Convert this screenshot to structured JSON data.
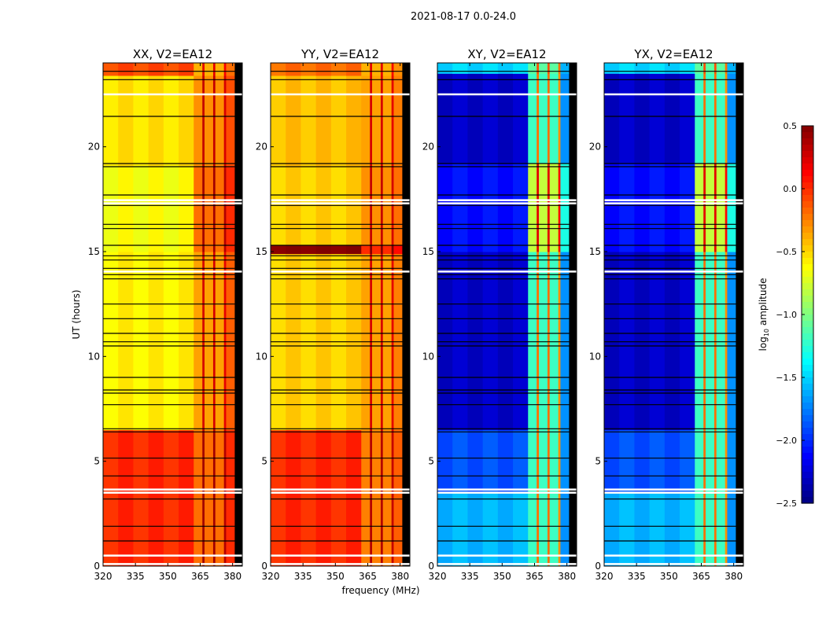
{
  "chart_data": {
    "type": "heatmap",
    "title": "2021-08-17 0.0-24.0",
    "xlabel": "frequency (MHz)",
    "ylabel": "UT (hours)",
    "xlim": [
      320,
      384.5
    ],
    "ylim": [
      0,
      24
    ],
    "xticks": [
      320,
      335,
      350,
      365,
      380
    ],
    "yticks": [
      0,
      5,
      10,
      15,
      20
    ],
    "colormap": "jet",
    "colorbar": {
      "label": "log10 amplitude",
      "label_main": "log",
      "label_sub": "10",
      "label_rest": " amplitude",
      "range": [
        -2.5,
        0.5
      ],
      "ticks": [
        "0.5",
        "0.0",
        "−0.5",
        "−1.0",
        "−1.5",
        "−2.0",
        "−2.5"
      ],
      "tick_values": [
        0.5,
        0.0,
        -0.5,
        -1.0,
        -1.5,
        -2.0,
        -2.5
      ]
    },
    "band_edge_mhz": 362,
    "high_band_columns_mhz": [
      362,
      366,
      367,
      371,
      372,
      376,
      377,
      381,
      384.5
    ],
    "flagged_black_ut": [
      23.6,
      23.2,
      21.45,
      19.2,
      19.05,
      17.7,
      17.2,
      16.3,
      16.1,
      15.3,
      14.8,
      14.6,
      14.2,
      13.9,
      13.7,
      12.5,
      11.8,
      11.1,
      10.7,
      10.5,
      9.0,
      8.4,
      8.25,
      7.7,
      6.55,
      6.4,
      5.15,
      4.3,
      3.2,
      1.9,
      1.2
    ],
    "flagged_white_ut": [
      22.5,
      17.45,
      17.3,
      14.05,
      3.65,
      3.5,
      0.5,
      0.1
    ],
    "panels": [
      {
        "title": "XX, V2=EA12",
        "segments": [
          [
            0,
            6.5,
            0.0,
            0.3
          ],
          [
            6.5,
            15.0,
            -0.6,
            0.15
          ],
          [
            15.0,
            19.1,
            -0.65,
            0.3
          ],
          [
            19.1,
            23.4,
            -0.55,
            0.2
          ],
          [
            23.4,
            24,
            -0.1,
            0.1
          ]
        ],
        "column_offsets": [
          0,
          -0.5,
          0.1,
          -0.5,
          0.1,
          -0.5,
          0.05,
          -0.3
        ]
      },
      {
        "title": "YY, V2=EA12",
        "segments": [
          [
            0,
            6.5,
            0.0,
            0.25
          ],
          [
            6.5,
            14.9,
            -0.5,
            0.15
          ],
          [
            14.9,
            15.3,
            0.5,
            0.5
          ],
          [
            15.3,
            19.1,
            -0.5,
            0.2
          ],
          [
            19.1,
            23.4,
            -0.45,
            0.15
          ],
          [
            23.4,
            24,
            -0.2,
            0.1
          ]
        ],
        "column_offsets": [
          0,
          -0.5,
          0.1,
          -0.5,
          0.1,
          -0.5,
          0.05,
          -0.4
        ]
      },
      {
        "title": "XY, V2=EA12",
        "segments": [
          [
            0,
            3.5,
            -1.6,
            -0.3
          ],
          [
            3.5,
            6.5,
            -1.9,
            -0.3
          ],
          [
            6.5,
            15.0,
            -2.3,
            -0.3
          ],
          [
            15.0,
            19.2,
            -2.1,
            0.1
          ],
          [
            19.2,
            23.5,
            -2.3,
            -0.3
          ],
          [
            23.5,
            24,
            -1.5,
            -0.2
          ]
        ],
        "column_offsets": [
          0,
          -0.9,
          0.1,
          -0.9,
          0.1,
          -0.9,
          0.0,
          -1.4
        ]
      },
      {
        "title": "YX, V2=EA12",
        "segments": [
          [
            0,
            3.5,
            -1.6,
            -0.3
          ],
          [
            3.5,
            6.5,
            -1.9,
            -0.3
          ],
          [
            6.5,
            15.0,
            -2.3,
            -0.3
          ],
          [
            15.0,
            19.2,
            -2.1,
            0.1
          ],
          [
            19.2,
            23.5,
            -2.3,
            -0.3
          ],
          [
            23.5,
            24,
            -1.5,
            -0.2
          ]
        ],
        "column_offsets": [
          0,
          -0.9,
          0.1,
          -0.9,
          0.1,
          -0.9,
          0.0,
          -1.4
        ]
      }
    ]
  }
}
